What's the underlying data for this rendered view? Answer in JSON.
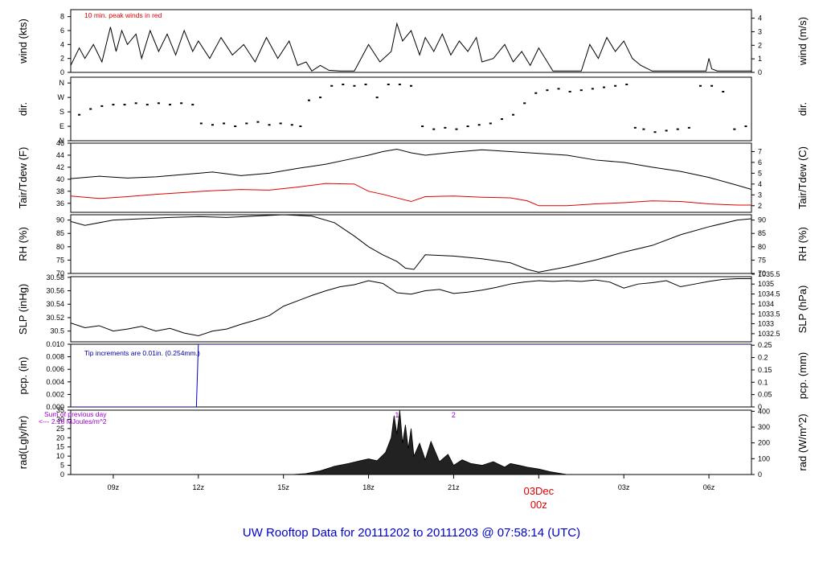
{
  "page": {
    "title": "UW Rooftop Data for 20111202  to  20111203 @ 07:58:14  (UTC)",
    "title_color": "#0000cc"
  },
  "time_axis": {
    "xlim": [
      7.5,
      31.5
    ],
    "ticks": [
      {
        "t": 9,
        "label": "09z"
      },
      {
        "t": 12,
        "label": "12z"
      },
      {
        "t": 15,
        "label": "15z"
      },
      {
        "t": 18,
        "label": "18z"
      },
      {
        "t": 21,
        "label": "21z"
      },
      {
        "t": 24,
        "label": "00z",
        "date": "03Dec",
        "highlight": true
      },
      {
        "t": 27,
        "label": "03z"
      },
      {
        "t": 30,
        "label": "06z"
      }
    ],
    "highlight_color": "#dd0000"
  },
  "chart_data": [
    {
      "id": "wind",
      "type": "line",
      "ylabel_left": "wind (kts)",
      "ylabel_right": "wind (m/s)",
      "ylim": [
        0,
        9
      ],
      "yticks_left": [
        0,
        2,
        4,
        6,
        8
      ],
      "yticks_right": [
        {
          "v": 0,
          "label": "0"
        },
        {
          "v": 1.944,
          "label": "1"
        },
        {
          "v": 3.888,
          "label": "2"
        },
        {
          "v": 5.832,
          "label": "3"
        },
        {
          "v": 7.776,
          "label": "4"
        }
      ],
      "annotation": "10 min. peak winds in red",
      "annotation_color": "#dd0000",
      "series": [
        {
          "color": "#000000",
          "x": [
            7.5,
            7.8,
            8.0,
            8.3,
            8.6,
            8.9,
            9.1,
            9.3,
            9.5,
            9.8,
            10.0,
            10.3,
            10.6,
            10.9,
            11.2,
            11.5,
            11.8,
            12.0,
            12.4,
            12.8,
            13.2,
            13.6,
            14.0,
            14.4,
            14.8,
            15.2,
            15.5,
            15.8,
            16.0,
            16.3,
            16.6,
            17.0,
            17.5,
            18.0,
            18.4,
            18.8,
            19.0,
            19.2,
            19.5,
            19.8,
            20.0,
            20.3,
            20.6,
            20.9,
            21.2,
            21.5,
            21.8,
            22.0,
            22.4,
            22.8,
            23.1,
            23.4,
            23.7,
            24.0,
            24.5,
            25.0,
            25.5,
            25.8,
            26.1,
            26.4,
            26.7,
            27.0,
            27.3,
            27.6,
            28.0,
            28.5,
            29.0,
            29.5,
            29.9,
            30.0,
            30.1,
            30.3,
            30.6,
            31.0,
            31.5
          ],
          "values": [
            1,
            3.5,
            2,
            4,
            1.5,
            6.5,
            3,
            6,
            4,
            5.5,
            2,
            6,
            3,
            5.5,
            2.5,
            6,
            3,
            4.5,
            2,
            5,
            2.5,
            4,
            1.5,
            5,
            2,
            4.5,
            1,
            1.5,
            0.2,
            1,
            0.3,
            0.2,
            0.2,
            4,
            1.5,
            3,
            7,
            4.5,
            6,
            2.5,
            5,
            3,
            5.5,
            2.5,
            4.5,
            3,
            5,
            1.5,
            2,
            4,
            1.5,
            3,
            1,
            3.5,
            0.2,
            0.2,
            0.2,
            4,
            2,
            5,
            3,
            4.5,
            2,
            1,
            0.2,
            0.2,
            0.2,
            0.2,
            0.2,
            2,
            0.5,
            0.2,
            0.2,
            0.2,
            0.2
          ]
        }
      ]
    },
    {
      "id": "dir",
      "type": "scatter",
      "ylabel_left": "dir.",
      "ylabel_right": "dir.",
      "ylim": [
        0,
        4.4
      ],
      "yticks_left": [
        {
          "v": 0,
          "label": "N"
        },
        {
          "v": 1,
          "label": "E"
        },
        {
          "v": 2,
          "label": "S"
        },
        {
          "v": 3,
          "label": "W"
        },
        {
          "v": 4,
          "label": "N"
        }
      ],
      "series": [
        {
          "color": "#000000",
          "x": [
            7.8,
            8.2,
            8.6,
            9.0,
            9.4,
            9.8,
            10.2,
            10.6,
            11.0,
            11.4,
            11.8,
            12.1,
            12.5,
            12.9,
            13.3,
            13.7,
            14.1,
            14.5,
            14.9,
            15.3,
            15.6,
            15.9,
            16.3,
            16.7,
            17.1,
            17.5,
            17.9,
            18.3,
            18.7,
            19.1,
            19.5,
            19.9,
            20.3,
            20.7,
            21.1,
            21.5,
            21.9,
            22.3,
            22.7,
            23.1,
            23.5,
            23.9,
            24.3,
            24.7,
            25.1,
            25.5,
            25.9,
            26.3,
            26.7,
            27.1,
            27.4,
            27.7,
            28.1,
            28.5,
            28.9,
            29.3,
            29.7,
            30.1,
            30.5,
            30.9,
            31.3
          ],
          "values": [
            1.8,
            2.2,
            2.4,
            2.5,
            2.5,
            2.6,
            2.5,
            2.6,
            2.5,
            2.6,
            2.5,
            1.2,
            1.1,
            1.2,
            1.0,
            1.2,
            1.3,
            1.1,
            1.2,
            1.1,
            1.0,
            2.8,
            3.0,
            3.8,
            3.9,
            3.8,
            3.9,
            3.0,
            3.9,
            3.9,
            3.8,
            1.0,
            0.8,
            0.9,
            0.8,
            1.0,
            1.1,
            1.2,
            1.5,
            1.8,
            2.6,
            3.3,
            3.5,
            3.6,
            3.4,
            3.5,
            3.6,
            3.7,
            3.8,
            3.9,
            0.9,
            0.8,
            0.6,
            0.7,
            0.8,
            0.9,
            3.8,
            3.8,
            3.4,
            0.8,
            1.0
          ]
        }
      ]
    },
    {
      "id": "temp",
      "type": "line",
      "ylabel_left": "Tair/Tdew (F)",
      "ylabel_right": "Tair/Tdew (C)",
      "ylim": [
        34.5,
        46
      ],
      "yticks_left": [
        36,
        38,
        40,
        42,
        44,
        46
      ],
      "yticks_right": [
        {
          "v": 35.6,
          "label": "2"
        },
        {
          "v": 37.4,
          "label": "3"
        },
        {
          "v": 39.2,
          "label": "4"
        },
        {
          "v": 41.0,
          "label": "5"
        },
        {
          "v": 42.8,
          "label": "6"
        },
        {
          "v": 44.6,
          "label": "7"
        }
      ],
      "series": [
        {
          "name": "Tair",
          "color": "#000000",
          "x": [
            7.5,
            8.5,
            9.5,
            10.5,
            11.5,
            12.5,
            13.5,
            14.5,
            15.5,
            16.5,
            17.5,
            18.0,
            18.5,
            19.0,
            19.5,
            20.0,
            21.0,
            22.0,
            23.0,
            24.0,
            25.0,
            26.0,
            27.0,
            28.0,
            29.0,
            30.0,
            31.0,
            31.5
          ],
          "values": [
            40.1,
            40.5,
            40.2,
            40.4,
            40.8,
            41.2,
            40.6,
            41.0,
            41.8,
            42.5,
            43.5,
            44.0,
            44.6,
            45.0,
            44.4,
            44.0,
            44.5,
            44.9,
            44.6,
            44.3,
            44.0,
            43.2,
            42.8,
            42.0,
            41.3,
            40.3,
            39.0,
            38.3
          ]
        },
        {
          "name": "Tdew",
          "color": "#dd0000",
          "x": [
            7.5,
            8.5,
            9.5,
            10.5,
            11.5,
            12.5,
            13.5,
            14.5,
            15.5,
            16.5,
            17.5,
            18.0,
            18.5,
            19.0,
            19.5,
            20.0,
            21.0,
            22.0,
            23.0,
            23.6,
            24.0,
            25.0,
            26.0,
            27.0,
            28.0,
            29.0,
            30.0,
            31.0,
            31.5
          ],
          "values": [
            37.2,
            36.8,
            37.1,
            37.5,
            37.8,
            38.1,
            38.3,
            38.2,
            38.7,
            39.3,
            39.2,
            38.0,
            37.5,
            36.9,
            36.3,
            37.1,
            37.2,
            37.0,
            36.9,
            36.4,
            35.6,
            35.6,
            35.9,
            36.1,
            36.4,
            36.3,
            35.9,
            35.7,
            35.7
          ]
        }
      ]
    },
    {
      "id": "rh",
      "type": "line",
      "ylabel_left": "RH (%)",
      "ylabel_right": "RH (%)",
      "ylim": [
        70,
        92
      ],
      "yticks_left": [
        70,
        75,
        80,
        85,
        90
      ],
      "yticks_right": [
        {
          "v": 70,
          "label": "70"
        },
        {
          "v": 75,
          "label": "75"
        },
        {
          "v": 80,
          "label": "80"
        },
        {
          "v": 85,
          "label": "85"
        },
        {
          "v": 90,
          "label": "90"
        }
      ],
      "series": [
        {
          "color": "#000000",
          "x": [
            7.5,
            8.0,
            9.0,
            10.0,
            11.0,
            12.0,
            13.0,
            14.0,
            15.0,
            16.0,
            16.8,
            17.5,
            18.0,
            18.5,
            19.0,
            19.3,
            19.6,
            20.0,
            21.0,
            22.0,
            23.0,
            23.6,
            24.0,
            25.0,
            26.0,
            27.0,
            28.0,
            29.0,
            30.0,
            31.0,
            31.5
          ],
          "values": [
            89.5,
            88.0,
            90.0,
            90.5,
            91.0,
            91.3,
            91.0,
            91.5,
            92.0,
            91.5,
            89.0,
            84.0,
            80.0,
            77.0,
            74.5,
            72.0,
            71.5,
            77.0,
            76.5,
            75.5,
            74.0,
            71.5,
            70.5,
            72.5,
            75.0,
            78.0,
            80.5,
            84.5,
            87.5,
            90.0,
            90.5
          ]
        }
      ]
    },
    {
      "id": "slp",
      "type": "line",
      "ylabel_left": "SLP (inHg)",
      "ylabel_right": "SLP (hPa)",
      "ylim": [
        30.484,
        30.581
      ],
      "yticks_left": [
        30.5,
        30.52,
        30.54,
        30.56,
        30.58
      ],
      "yticks_right": [
        {
          "v": 30.4961,
          "label": "1032.5"
        },
        {
          "v": 30.5109,
          "label": "1033"
        },
        {
          "v": 30.5256,
          "label": "1033.5"
        },
        {
          "v": 30.5404,
          "label": "1034"
        },
        {
          "v": 30.5552,
          "label": "1034.5"
        },
        {
          "v": 30.57,
          "label": "1035"
        },
        {
          "v": 30.5847,
          "label": "1035.5"
        }
      ],
      "series": [
        {
          "color": "#000000",
          "x": [
            7.5,
            8.0,
            8.5,
            9.0,
            9.5,
            10.0,
            10.5,
            11.0,
            11.5,
            12.0,
            12.5,
            13.0,
            13.5,
            14.0,
            14.5,
            15.0,
            15.5,
            16.0,
            16.5,
            17.0,
            17.5,
            18.0,
            18.5,
            19.0,
            19.5,
            20.0,
            20.5,
            21.0,
            21.5,
            22.0,
            22.5,
            23.0,
            23.5,
            24.0,
            24.5,
            25.0,
            25.5,
            26.0,
            26.5,
            27.0,
            27.5,
            28.0,
            28.5,
            29.0,
            29.5,
            30.0,
            30.5,
            31.0,
            31.5
          ],
          "values": [
            30.512,
            30.505,
            30.508,
            30.5,
            30.503,
            30.507,
            30.5,
            30.504,
            30.497,
            30.493,
            30.5,
            30.503,
            30.51,
            30.516,
            30.523,
            30.537,
            30.545,
            30.553,
            30.56,
            30.566,
            30.569,
            30.575,
            30.571,
            30.557,
            30.555,
            30.56,
            30.562,
            30.556,
            30.558,
            30.561,
            30.565,
            30.57,
            30.573,
            30.575,
            30.574,
            30.575,
            30.574,
            30.576,
            30.573,
            30.564,
            30.57,
            30.572,
            30.575,
            30.566,
            30.57,
            30.574,
            30.577,
            30.578,
            30.578
          ]
        }
      ]
    },
    {
      "id": "pcp",
      "type": "line",
      "ylabel_left": "pcp. (in)",
      "ylabel_right": "pcp. (mm)",
      "ylim": [
        0,
        0.01
      ],
      "yticks_left": [
        {
          "v": 0,
          "label": "0.000"
        },
        {
          "v": 0.002,
          "label": "0.002"
        },
        {
          "v": 0.004,
          "label": "0.004"
        },
        {
          "v": 0.006,
          "label": "0.006"
        },
        {
          "v": 0.008,
          "label": "0.008"
        },
        {
          "v": 0.01,
          "label": "0.010"
        }
      ],
      "yticks_right": [
        {
          "v": 0,
          "label": "0"
        },
        {
          "v": 0.001969,
          "label": "0.05"
        },
        {
          "v": 0.003937,
          "label": "0.1"
        },
        {
          "v": 0.005906,
          "label": "0.15"
        },
        {
          "v": 0.007874,
          "label": "0.2"
        },
        {
          "v": 0.009843,
          "label": "0.25"
        }
      ],
      "annotation": "Tip increments are 0.01in. (0.254mm.)",
      "annotation_color": "#000099",
      "series": [
        {
          "color": "#0000cc",
          "x": [
            7.5,
            11.93,
            12.0,
            31.5
          ],
          "values": [
            0,
            0,
            0.01,
            0.01
          ]
        }
      ]
    },
    {
      "id": "rad",
      "type": "area",
      "ylabel_left": "rad(Lgly/hr)",
      "ylabel_right": "rad (W/m^2)",
      "ylim": [
        0,
        35
      ],
      "yticks_left": [
        0,
        5,
        10,
        15,
        20,
        25,
        30,
        35
      ],
      "yticks_right": [
        {
          "v": 0,
          "label": "0"
        },
        {
          "v": 8.6,
          "label": "100"
        },
        {
          "v": 17.2,
          "label": "200"
        },
        {
          "v": 25.8,
          "label": "300"
        },
        {
          "v": 34.4,
          "label": "400"
        }
      ],
      "annotations": [
        "Sum of previous day",
        "<--- 2.18 MJoules/m^2"
      ],
      "annotation_color": "#9900cc",
      "markers": [
        {
          "t": 19.0,
          "label": "1"
        },
        {
          "t": 21.0,
          "label": "2"
        }
      ],
      "series": [
        {
          "color": "#000000",
          "x": [
            15.3,
            15.8,
            16.3,
            16.8,
            17.3,
            17.7,
            18.0,
            18.3,
            18.6,
            18.8,
            18.9,
            19.0,
            19.1,
            19.2,
            19.3,
            19.4,
            19.5,
            19.6,
            19.8,
            20.0,
            20.2,
            20.5,
            20.8,
            21.0,
            21.3,
            21.6,
            22.0,
            22.4,
            22.8,
            23.0,
            23.3,
            23.6,
            24.0,
            24.4,
            24.8,
            25.0
          ],
          "values": [
            0,
            0.5,
            2,
            4.5,
            6,
            7.5,
            8.5,
            7.5,
            12,
            20,
            32,
            22,
            35,
            17,
            27,
            14,
            25,
            10,
            17,
            8,
            18,
            7,
            11,
            5,
            8,
            6,
            5,
            7,
            4,
            6,
            5,
            4,
            3,
            1.5,
            0.5,
            0
          ]
        }
      ]
    }
  ]
}
